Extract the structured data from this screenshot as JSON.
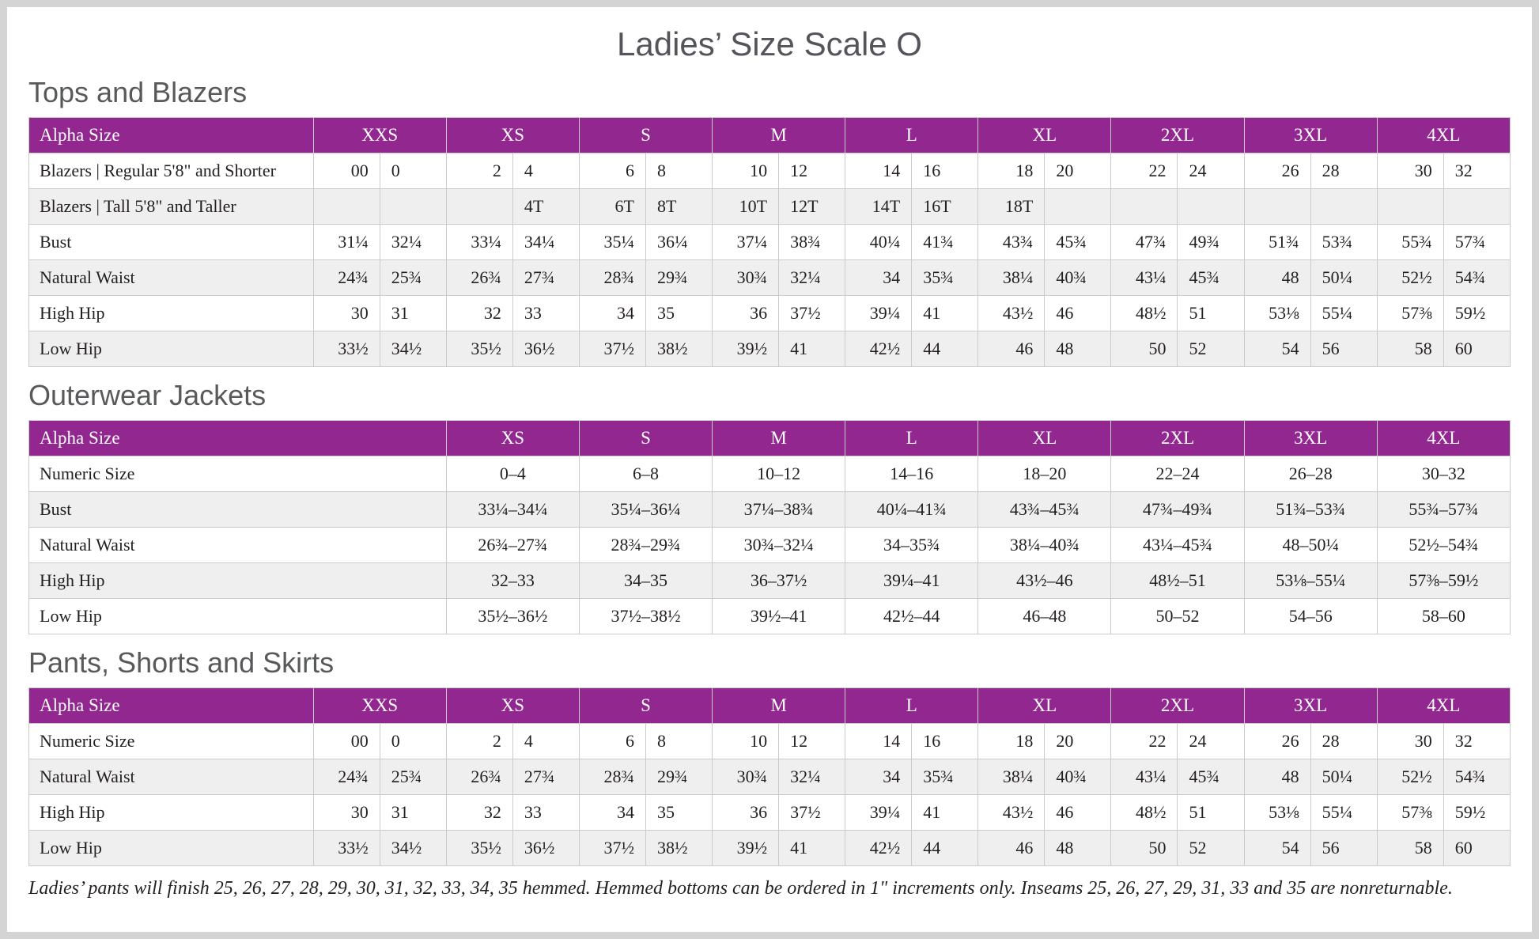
{
  "page": {
    "title": "Ladies’ Size Scale O",
    "footnote": "Ladies’ pants will finish 25, 26, 27, 28, 29, 30, 31, 32, 33, 34, 35 hemmed. Hemmed bottoms can be ordered in 1\" increments only. Inseams 25, 26, 27, 29, 31, 33 and 35 are nonreturnable."
  },
  "colors": {
    "header_purple": "#91278f",
    "alt_row_gray": "#f0eff0",
    "heading_gray": "#58595b",
    "body_text": "#231f20",
    "grid_border": "#cbcbcb"
  },
  "tables": [
    {
      "heading": "Tops and Blazers",
      "layout": "paired",
      "label_header": "Alpha Size",
      "alpha_sizes": [
        "XXS",
        "XS",
        "S",
        "M",
        "L",
        "XL",
        "2XL",
        "3XL",
        "4XL"
      ],
      "rows": [
        {
          "label": "Blazers | Regular 5'8\" and Shorter",
          "values": [
            "00",
            "0",
            "2",
            "4",
            "6",
            "8",
            "10",
            "12",
            "14",
            "16",
            "18",
            "20",
            "22",
            "24",
            "26",
            "28",
            "30",
            "32"
          ]
        },
        {
          "label": "Blazers | Tall 5'8\" and Taller",
          "values": [
            "",
            "",
            "",
            "4T",
            "6T",
            "8T",
            "10T",
            "12T",
            "14T",
            "16T",
            "18T",
            "",
            "",
            "",
            "",
            "",
            "",
            ""
          ]
        },
        {
          "label": "Bust",
          "values": [
            "31¼",
            "32¼",
            "33¼",
            "34¼",
            "35¼",
            "36¼",
            "37¼",
            "38¾",
            "40¼",
            "41¾",
            "43¾",
            "45¾",
            "47¾",
            "49¾",
            "51¾",
            "53¾",
            "55¾",
            "57¾"
          ]
        },
        {
          "label": "Natural Waist",
          "values": [
            "24¾",
            "25¾",
            "26¾",
            "27¾",
            "28¾",
            "29¾",
            "30¾",
            "32¼",
            "34",
            "35¾",
            "38¼",
            "40¾",
            "43¼",
            "45¾",
            "48",
            "50¼",
            "52½",
            "54¾"
          ]
        },
        {
          "label": "High Hip",
          "values": [
            "30",
            "31",
            "32",
            "33",
            "34",
            "35",
            "36",
            "37½",
            "39¼",
            "41",
            "43½",
            "46",
            "48½",
            "51",
            "53⅛",
            "55¼",
            "57⅜",
            "59½"
          ]
        },
        {
          "label": "Low Hip",
          "values": [
            "33½",
            "34½",
            "35½",
            "36½",
            "37½",
            "38½",
            "39½",
            "41",
            "42½",
            "44",
            "46",
            "48",
            "50",
            "52",
            "54",
            "56",
            "58",
            "60"
          ]
        }
      ]
    },
    {
      "heading": "Outerwear Jackets",
      "layout": "range",
      "label_header": "Alpha Size",
      "alpha_sizes": [
        "XS",
        "S",
        "M",
        "L",
        "XL",
        "2XL",
        "3XL",
        "4XL"
      ],
      "rows": [
        {
          "label": "Numeric Size",
          "values": [
            "0–4",
            "6–8",
            "10–12",
            "14–16",
            "18–20",
            "22–24",
            "26–28",
            "30–32"
          ]
        },
        {
          "label": "Bust",
          "values": [
            "33¼–34¼",
            "35¼–36¼",
            "37¼–38¾",
            "40¼–41¾",
            "43¾–45¾",
            "47¾–49¾",
            "51¾–53¾",
            "55¾–57¾"
          ]
        },
        {
          "label": "Natural Waist",
          "values": [
            "26¾–27¾",
            "28¾–29¾",
            "30¾–32¼",
            "34–35¾",
            "38¼–40¾",
            "43¼–45¾",
            "48–50¼",
            "52½–54¾"
          ]
        },
        {
          "label": "High Hip",
          "values": [
            "32–33",
            "34–35",
            "36–37½",
            "39¼–41",
            "43½–46",
            "48½–51",
            "53⅛–55¼",
            "57⅜–59½"
          ]
        },
        {
          "label": "Low Hip",
          "values": [
            "35½–36½",
            "37½–38½",
            "39½–41",
            "42½–44",
            "46–48",
            "50–52",
            "54–56",
            "58–60"
          ]
        }
      ]
    },
    {
      "heading": "Pants, Shorts and Skirts",
      "layout": "paired",
      "label_header": "Alpha Size",
      "alpha_sizes": [
        "XXS",
        "XS",
        "S",
        "M",
        "L",
        "XL",
        "2XL",
        "3XL",
        "4XL"
      ],
      "rows": [
        {
          "label": "Numeric Size",
          "values": [
            "00",
            "0",
            "2",
            "4",
            "6",
            "8",
            "10",
            "12",
            "14",
            "16",
            "18",
            "20",
            "22",
            "24",
            "26",
            "28",
            "30",
            "32"
          ]
        },
        {
          "label": "Natural Waist",
          "values": [
            "24¾",
            "25¾",
            "26¾",
            "27¾",
            "28¾",
            "29¾",
            "30¾",
            "32¼",
            "34",
            "35¾",
            "38¼",
            "40¾",
            "43¼",
            "45¾",
            "48",
            "50¼",
            "52½",
            "54¾"
          ]
        },
        {
          "label": "High Hip",
          "values": [
            "30",
            "31",
            "32",
            "33",
            "34",
            "35",
            "36",
            "37½",
            "39¼",
            "41",
            "43½",
            "46",
            "48½",
            "51",
            "53⅛",
            "55¼",
            "57⅜",
            "59½"
          ]
        },
        {
          "label": "Low Hip",
          "values": [
            "33½",
            "34½",
            "35½",
            "36½",
            "37½",
            "38½",
            "39½",
            "41",
            "42½",
            "44",
            "46",
            "48",
            "50",
            "52",
            "54",
            "56",
            "58",
            "60"
          ]
        }
      ]
    }
  ]
}
